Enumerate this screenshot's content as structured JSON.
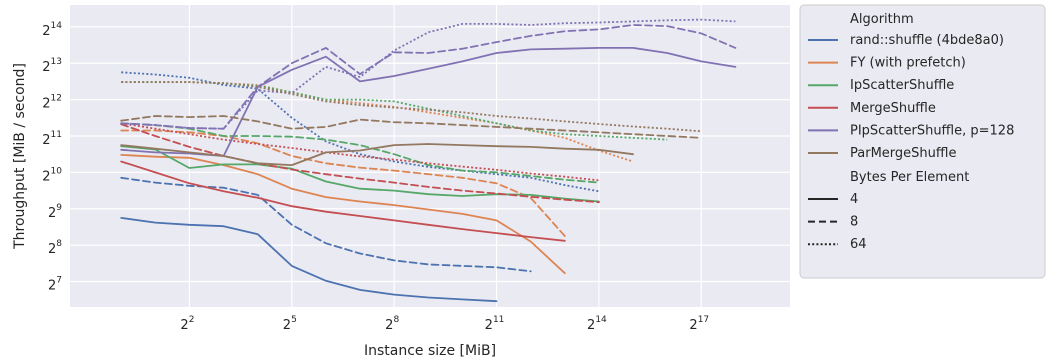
{
  "chart_data": {
    "type": "line",
    "xlabel": "Instance size [MiB]",
    "ylabel": "Throughput [MiB / second]",
    "xscale": "log2",
    "yscale": "log2",
    "xlim_log2": [
      -1.5,
      19.6
    ],
    "ylim_log2": [
      6.3,
      14.6
    ],
    "xticks": [
      {
        "exp": 2,
        "base": "2",
        "sup": "2"
      },
      {
        "exp": 5,
        "base": "2",
        "sup": "5"
      },
      {
        "exp": 8,
        "base": "2",
        "sup": "8"
      },
      {
        "exp": 11,
        "base": "2",
        "sup": "11"
      },
      {
        "exp": 14,
        "base": "2",
        "sup": "14"
      },
      {
        "exp": 17,
        "base": "2",
        "sup": "17"
      }
    ],
    "yticks": [
      {
        "exp": 7,
        "base": "2",
        "sup": "7"
      },
      {
        "exp": 8,
        "base": "2",
        "sup": "8"
      },
      {
        "exp": 9,
        "base": "2",
        "sup": "9"
      },
      {
        "exp": 10,
        "base": "2",
        "sup": "10"
      },
      {
        "exp": 11,
        "base": "2",
        "sup": "11"
      },
      {
        "exp": 12,
        "base": "2",
        "sup": "12"
      },
      {
        "exp": 13,
        "base": "2",
        "sup": "13"
      },
      {
        "exp": 14,
        "base": "2",
        "sup": "14"
      }
    ],
    "grid": true,
    "legend_placement": "outside-right",
    "legend": {
      "hue_title": "Algorithm",
      "style_title": "Bytes Per Element",
      "algorithms": [
        {
          "name": "rand::shuffle (4bde8a0)",
          "color": "#4c72b0"
        },
        {
          "name": "FY (with prefetch)",
          "color": "#dd8452"
        },
        {
          "name": "IpScatterShuffle",
          "color": "#55a868"
        },
        {
          "name": "MergeShuffle",
          "color": "#c44e52"
        },
        {
          "name": "PIpScatterShuffle, p=128",
          "color": "#8172b3"
        },
        {
          "name": "ParMergeShuffle",
          "color": "#937860"
        }
      ],
      "styles": [
        {
          "label": "4",
          "dash": "solid"
        },
        {
          "label": "8",
          "dash": "dashed"
        },
        {
          "label": "64",
          "dash": "dotted"
        }
      ]
    },
    "series": [
      {
        "algorithm": "rand::shuffle (4bde8a0)",
        "bytes": "4",
        "x_log2": [
          0,
          1,
          2,
          3,
          4,
          5,
          6,
          7,
          8,
          9,
          10,
          11
        ],
        "y_log2": [
          8.75,
          8.62,
          8.56,
          8.52,
          8.3,
          7.43,
          7.02,
          6.77,
          6.64,
          6.56,
          6.51,
          6.46
        ]
      },
      {
        "algorithm": "rand::shuffle (4bde8a0)",
        "bytes": "8",
        "x_log2": [
          0,
          1,
          2,
          3,
          4,
          5,
          6,
          7,
          8,
          9,
          10,
          11,
          12
        ],
        "y_log2": [
          9.85,
          9.72,
          9.63,
          9.58,
          9.38,
          8.56,
          8.05,
          7.77,
          7.58,
          7.47,
          7.43,
          7.39,
          7.28
        ]
      },
      {
        "algorithm": "rand::shuffle (4bde8a0)",
        "bytes": "64",
        "x_log2": [
          0,
          1,
          2,
          3,
          4,
          5,
          6,
          7,
          8,
          9,
          10,
          11,
          12,
          13,
          14
        ],
        "y_log2": [
          12.75,
          12.69,
          12.6,
          12.4,
          12.3,
          11.5,
          10.85,
          10.5,
          10.3,
          10.15,
          10.05,
          9.95,
          9.85,
          9.65,
          9.48
        ]
      },
      {
        "algorithm": "FY (with prefetch)",
        "bytes": "4",
        "x_log2": [
          0,
          1,
          2,
          3,
          4,
          5,
          6,
          7,
          8,
          9,
          10,
          11,
          12,
          13
        ],
        "y_log2": [
          10.48,
          10.43,
          10.4,
          10.2,
          9.95,
          9.55,
          9.32,
          9.2,
          9.1,
          8.98,
          8.86,
          8.68,
          8.1,
          7.23
        ]
      },
      {
        "algorithm": "FY (with prefetch)",
        "bytes": "8",
        "x_log2": [
          0,
          1,
          2,
          3,
          4,
          5,
          6,
          7,
          8,
          9,
          10,
          11,
          12,
          13
        ],
        "y_log2": [
          11.15,
          11.15,
          11.1,
          11.0,
          10.8,
          10.45,
          10.25,
          10.13,
          10.05,
          9.95,
          9.85,
          9.7,
          9.3,
          8.25
        ]
      },
      {
        "algorithm": "FY (with prefetch)",
        "bytes": "64",
        "x_log2": [
          0,
          1,
          2,
          3,
          4,
          5,
          6,
          7,
          8,
          9,
          10,
          11,
          12,
          13,
          14,
          15
        ],
        "y_log2": [
          12.48,
          12.48,
          12.48,
          12.45,
          12.4,
          12.2,
          12.0,
          11.9,
          11.8,
          11.65,
          11.5,
          11.35,
          11.15,
          10.95,
          10.6,
          10.3
        ]
      },
      {
        "algorithm": "IpScatterShuffle",
        "bytes": "4",
        "x_log2": [
          0,
          1,
          2,
          3,
          4,
          5,
          6,
          7,
          8,
          9,
          10,
          11,
          12,
          13,
          14
        ],
        "y_log2": [
          10.72,
          10.63,
          10.12,
          10.22,
          10.22,
          10.1,
          9.75,
          9.55,
          9.5,
          9.4,
          9.35,
          9.4,
          9.38,
          9.28,
          9.2
        ]
      },
      {
        "algorithm": "IpScatterShuffle",
        "bytes": "8",
        "x_log2": [
          0,
          1,
          2,
          3,
          4,
          5,
          6,
          7,
          8,
          9,
          10,
          11,
          12,
          13,
          14
        ],
        "y_log2": [
          11.35,
          11.3,
          11.2,
          11.0,
          11.0,
          10.98,
          10.9,
          10.75,
          10.5,
          10.2,
          10.05,
          10.0,
          9.9,
          9.8,
          9.72
        ]
      },
      {
        "algorithm": "IpScatterShuffle",
        "bytes": "64",
        "x_log2": [
          0,
          1,
          2,
          3,
          4,
          5,
          6,
          7,
          8,
          9,
          10,
          11,
          12,
          13,
          14,
          15,
          16
        ],
        "y_log2": [
          12.48,
          12.48,
          12.48,
          12.45,
          12.38,
          12.2,
          12.0,
          12.0,
          11.95,
          11.75,
          11.55,
          11.35,
          11.15,
          11.05,
          11.0,
          10.95,
          10.9
        ]
      },
      {
        "algorithm": "MergeShuffle",
        "bytes": "4",
        "x_log2": [
          0,
          1,
          2,
          3,
          4,
          5,
          6,
          7,
          8,
          9,
          10,
          11,
          12,
          13
        ],
        "y_log2": [
          10.3,
          10.0,
          9.7,
          9.48,
          9.3,
          9.07,
          8.92,
          8.8,
          8.68,
          8.56,
          8.44,
          8.33,
          8.22,
          8.12
        ]
      },
      {
        "algorithm": "MergeShuffle",
        "bytes": "8",
        "x_log2": [
          0,
          1,
          2,
          3,
          4,
          5,
          6,
          7,
          8,
          9,
          10,
          11,
          12,
          13,
          14
        ],
        "y_log2": [
          11.32,
          11.0,
          10.7,
          10.45,
          10.25,
          10.08,
          9.95,
          9.83,
          9.72,
          9.6,
          9.5,
          9.42,
          9.33,
          9.25,
          9.18
        ]
      },
      {
        "algorithm": "MergeShuffle",
        "bytes": "64",
        "x_log2": [
          0,
          1,
          2,
          3,
          4,
          5,
          6,
          7,
          8,
          9,
          10,
          11,
          12,
          13,
          14
        ],
        "y_log2": [
          11.35,
          11.2,
          11.05,
          10.9,
          10.78,
          10.67,
          10.55,
          10.44,
          10.35,
          10.25,
          10.16,
          10.07,
          9.97,
          9.88,
          9.78
        ]
      },
      {
        "algorithm": "PIpScatterShuffle, p=128",
        "bytes": "4",
        "x_log2": [
          0,
          1,
          2,
          3,
          4,
          5,
          6,
          7,
          8,
          9,
          10,
          11,
          12,
          13,
          14,
          15,
          16,
          17,
          18
        ],
        "y_log2": [
          10.62,
          10.55,
          10.52,
          10.45,
          12.35,
          12.82,
          13.18,
          12.5,
          12.65,
          12.85,
          13.05,
          13.28,
          13.38,
          13.4,
          13.42,
          13.42,
          13.28,
          13.05,
          12.9
        ]
      },
      {
        "algorithm": "PIpScatterShuffle, p=128",
        "bytes": "8",
        "x_log2": [
          0,
          1,
          2,
          3,
          4,
          5,
          6,
          7,
          8,
          9,
          10,
          11,
          12,
          13,
          14,
          15,
          16,
          17,
          18
        ],
        "y_log2": [
          11.35,
          11.3,
          11.22,
          11.2,
          12.35,
          13.0,
          13.42,
          12.7,
          13.3,
          13.28,
          13.4,
          13.58,
          13.75,
          13.88,
          13.93,
          14.05,
          14.02,
          13.82,
          13.42
        ]
      },
      {
        "algorithm": "PIpScatterShuffle, p=128",
        "bytes": "64",
        "x_log2": [
          0,
          1,
          2,
          3,
          4,
          5,
          6,
          7,
          8,
          9,
          10,
          11,
          12,
          13,
          14,
          15,
          16,
          17,
          18
        ],
        "y_log2": [
          11.35,
          11.3,
          11.22,
          11.2,
          12.25,
          12.18,
          12.9,
          12.62,
          13.35,
          13.85,
          14.08,
          14.08,
          14.05,
          14.1,
          14.12,
          14.15,
          14.18,
          14.2,
          14.15
        ]
      },
      {
        "algorithm": "ParMergeShuffle",
        "bytes": "4",
        "x_log2": [
          0,
          1,
          2,
          3,
          4,
          5,
          6,
          7,
          8,
          9,
          10,
          11,
          12,
          13,
          14,
          15
        ],
        "y_log2": [
          10.75,
          10.65,
          10.55,
          10.45,
          10.25,
          10.2,
          10.55,
          10.6,
          10.75,
          10.78,
          10.75,
          10.72,
          10.7,
          10.65,
          10.62,
          10.5
        ]
      },
      {
        "algorithm": "ParMergeShuffle",
        "bytes": "8",
        "x_log2": [
          0,
          1,
          2,
          3,
          4,
          5,
          6,
          7,
          8,
          9,
          10,
          11,
          12,
          13,
          14,
          15,
          16,
          17
        ],
        "y_log2": [
          11.42,
          11.55,
          11.52,
          11.55,
          11.4,
          11.2,
          11.25,
          11.45,
          11.38,
          11.35,
          11.3,
          11.25,
          11.2,
          11.15,
          11.1,
          11.05,
          11.0,
          10.95
        ]
      },
      {
        "algorithm": "ParMergeShuffle",
        "bytes": "64",
        "x_log2": [
          0,
          1,
          2,
          3,
          4,
          5,
          6,
          7,
          8,
          9,
          10,
          11,
          12,
          13,
          14,
          15,
          16,
          17
        ],
        "y_log2": [
          12.48,
          12.48,
          12.48,
          12.45,
          12.35,
          12.15,
          11.95,
          11.85,
          11.78,
          11.72,
          11.65,
          11.55,
          11.48,
          11.4,
          11.33,
          11.26,
          11.2,
          11.13
        ]
      }
    ]
  }
}
